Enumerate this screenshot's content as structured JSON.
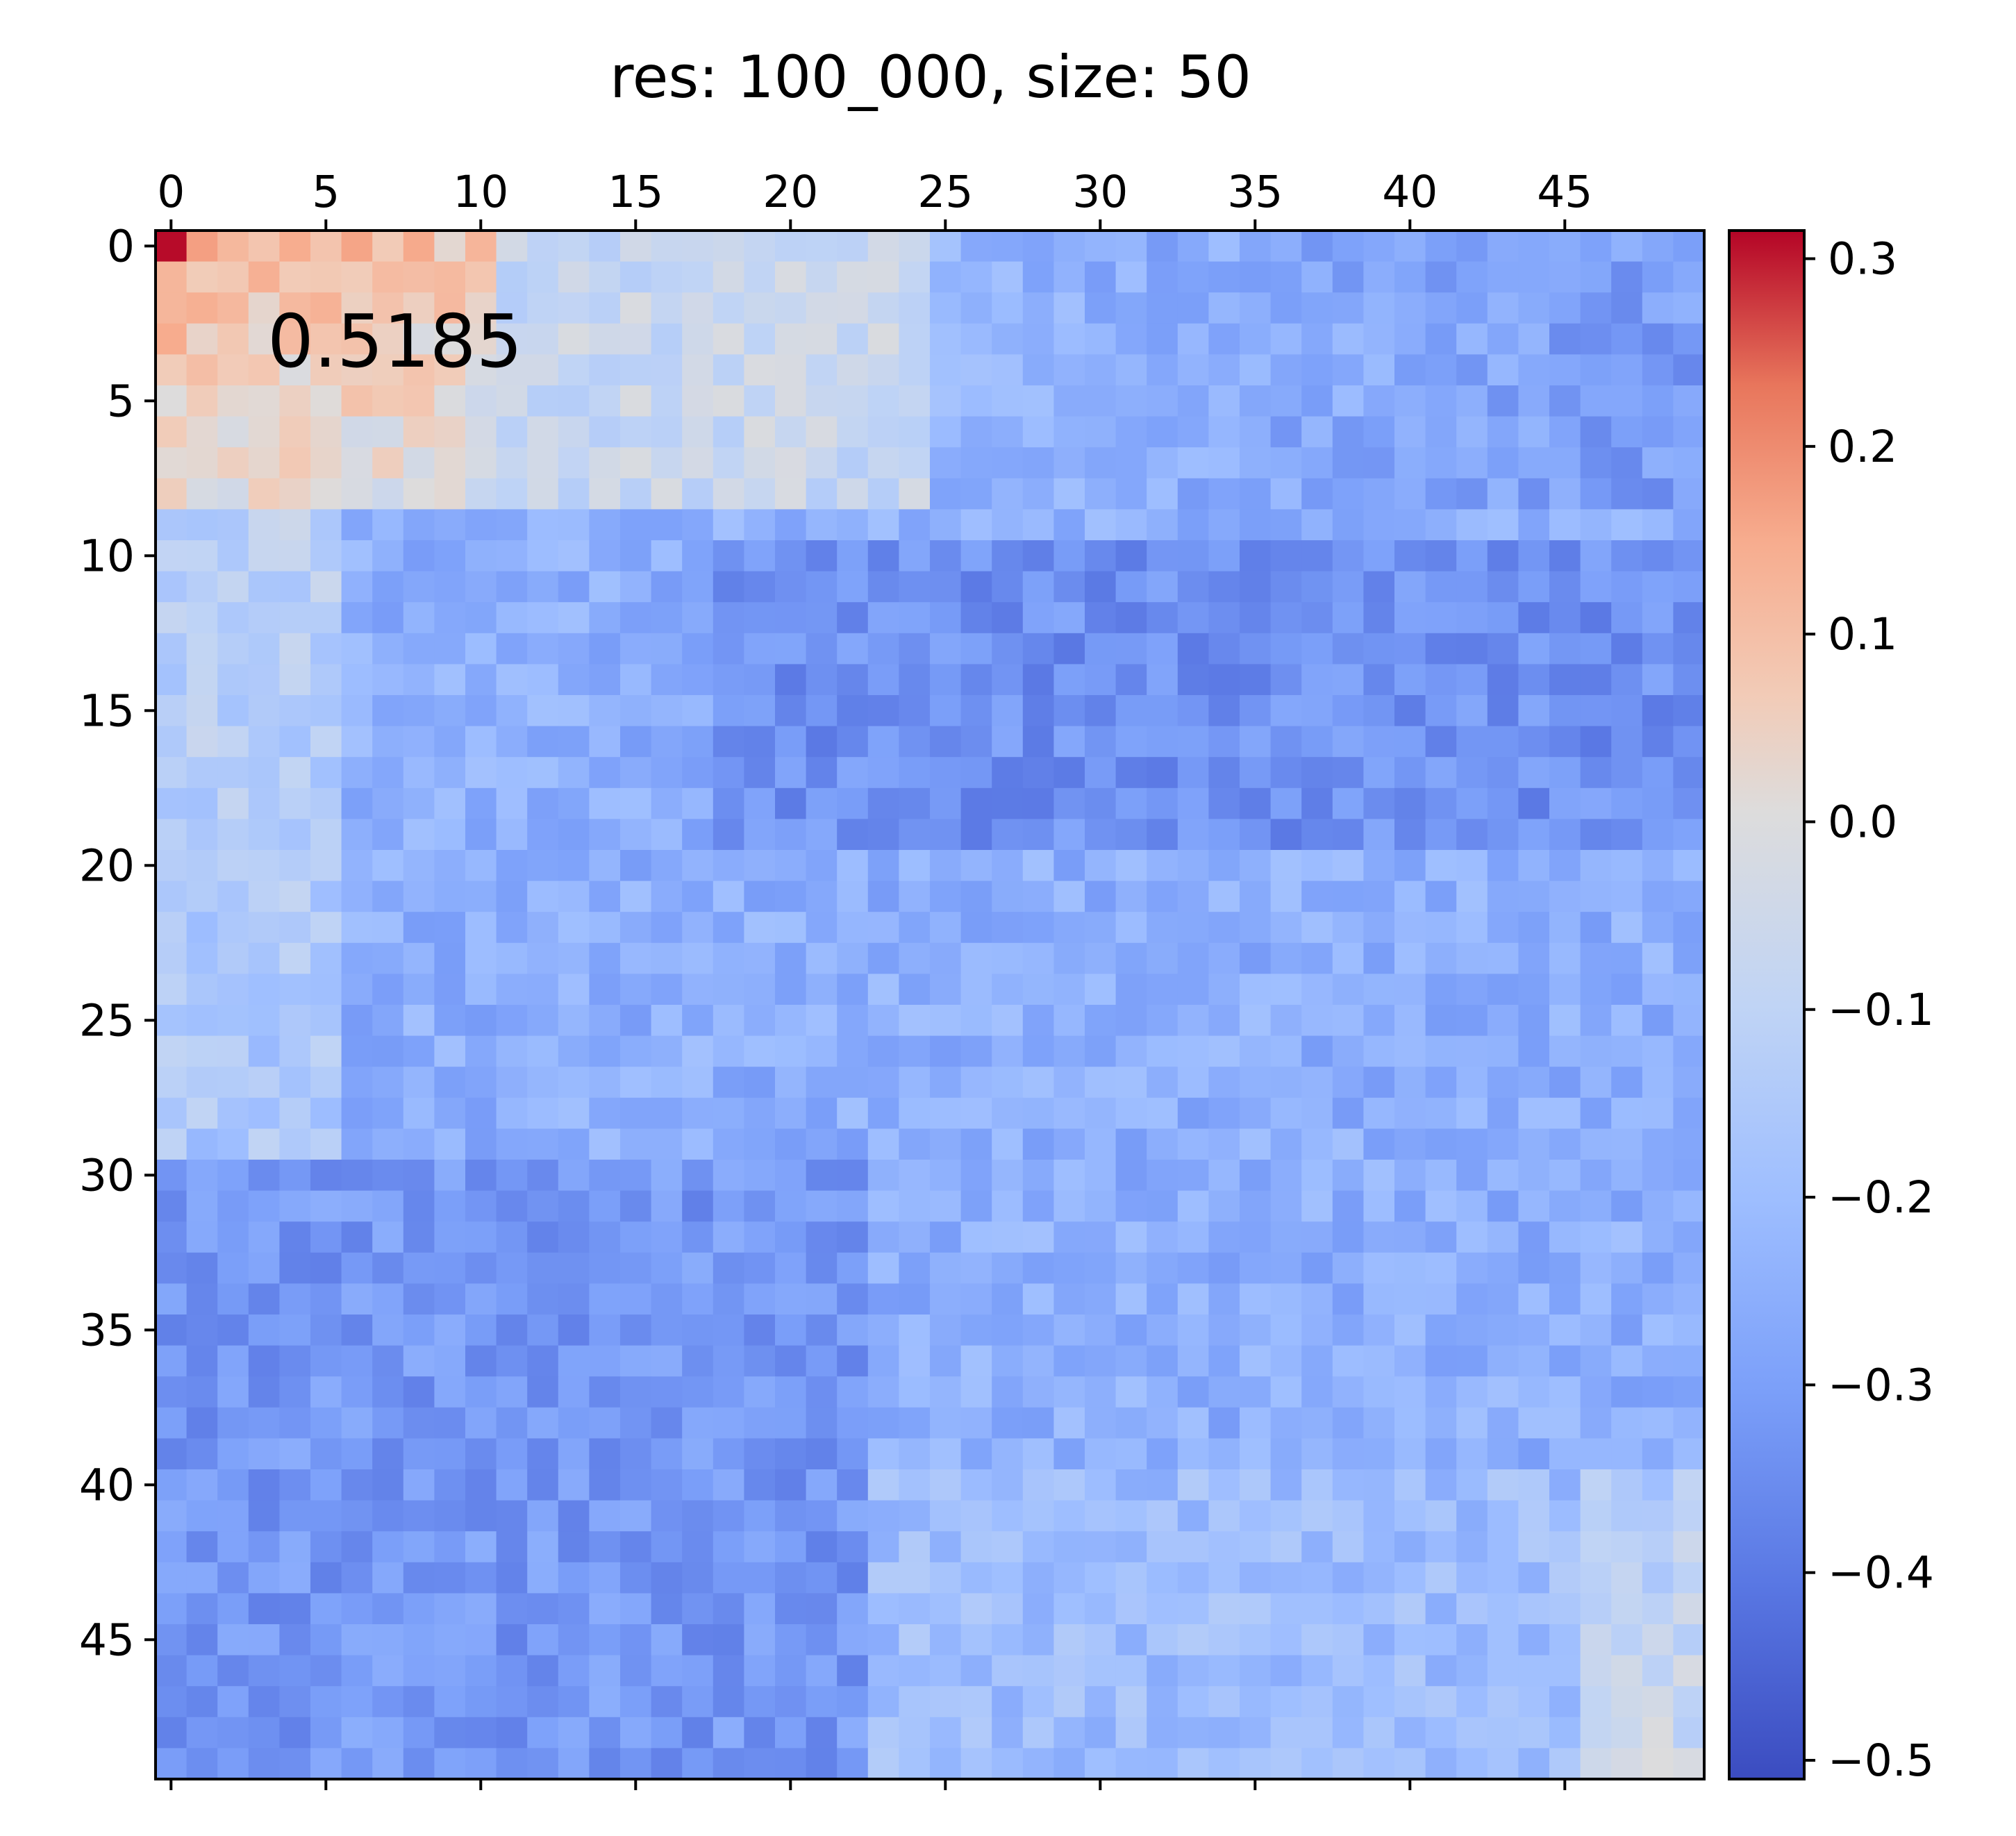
{
  "chart_data": {
    "type": "heatmap",
    "title": "res: 100_000, size: 50",
    "rows": 50,
    "cols": 50,
    "x_ticks": [
      "0",
      "5",
      "10",
      "15",
      "20",
      "25",
      "30",
      "35",
      "40",
      "45"
    ],
    "y_ticks": [
      "0",
      "5",
      "10",
      "15",
      "20",
      "25",
      "30",
      "35",
      "40",
      "45"
    ],
    "x_axis_position": "top",
    "colormap": "coolwarm",
    "colorbar": {
      "vmin": -0.51,
      "vmax": 0.315,
      "ticks": [
        "0.3",
        "0.2",
        "0.1",
        "0.0",
        "−0.1",
        "−0.2",
        "−0.3",
        "−0.4",
        "−0.5"
      ],
      "tick_values": [
        0.3,
        0.2,
        0.1,
        0.0,
        -0.1,
        -0.2,
        -0.3,
        -0.4,
        -0.5
      ]
    },
    "annotation": "0.5185",
    "colors": {
      "low": "#3b4cc0",
      "mid": "#dddddd",
      "high": "#b40426"
    },
    "region_estimates": {
      "description_values": [
        {
          "region": "rows 0-8, cols 0-10",
          "value": 0.12
        },
        {
          "region": "rows 0-8, cols 11-23",
          "value": -0.08
        },
        {
          "region": "rows 9-29, cols 0-6",
          "value": -0.12
        },
        {
          "region": "rows 10-19, cols 20-49",
          "value": -0.33
        },
        {
          "region": "rows 30-49, cols 0-20",
          "value": -0.33
        },
        {
          "region": "rows 40-49, cols 45-49",
          "value": -0.08
        }
      ]
    }
  }
}
